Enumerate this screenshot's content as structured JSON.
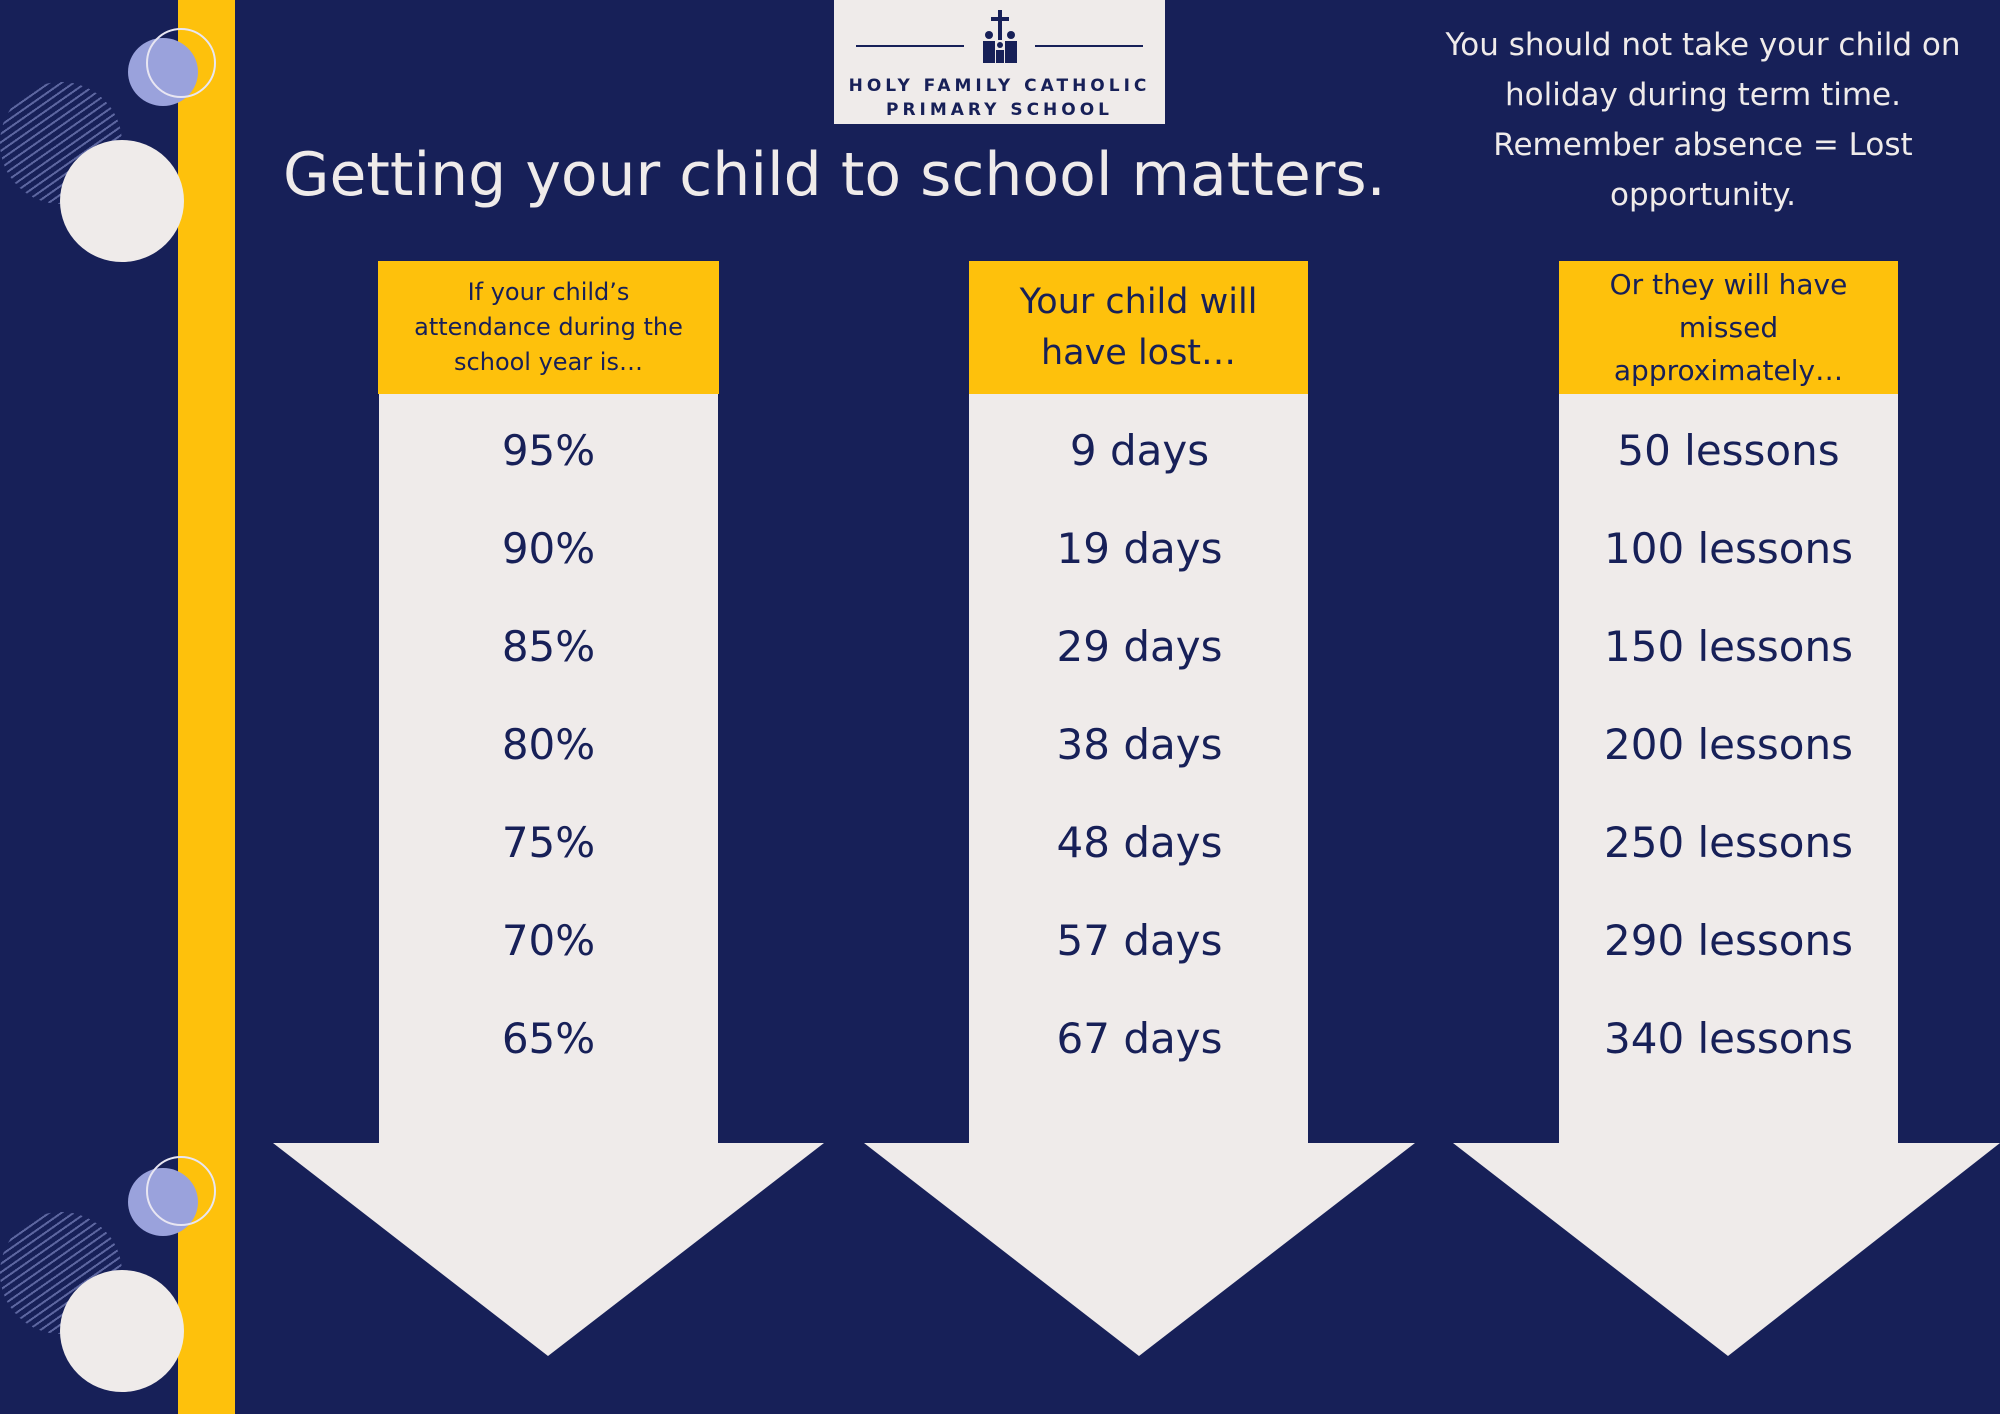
{
  "colors": {
    "background": "#172058",
    "accent_yellow": "#fec10c",
    "panel": "#efebea",
    "text_dark": "#172058",
    "text_light": "#efebea",
    "decor_lavender": "#9aa2dc"
  },
  "logo": {
    "icon": "cross-and-family-icon",
    "line1": "HOLY FAMILY CATHOLIC",
    "line2": "PRIMARY SCHOOL"
  },
  "page_title": "Getting your child to school matters.",
  "notice": "You should not take your child on holiday during term time. Remember absence = Lost opportunity.",
  "columns": [
    {
      "header": "If your child’s\nattendance during the\nschool year is…",
      "values": [
        "95%",
        "90%",
        "85%",
        "80%",
        "75%",
        "70%",
        "65%"
      ]
    },
    {
      "header": "Your child will\nhave lost…",
      "values": [
        "9 days",
        "19 days",
        "29 days",
        "38 days",
        "48 days",
        "57 days",
        "67 days"
      ]
    },
    {
      "header": "Or they will have\nmissed\napproximately…",
      "values": [
        "50 lessons",
        "100 lessons",
        "150 lessons",
        "200 lessons",
        "250 lessons",
        "290 lessons",
        "340 lessons"
      ]
    }
  ]
}
